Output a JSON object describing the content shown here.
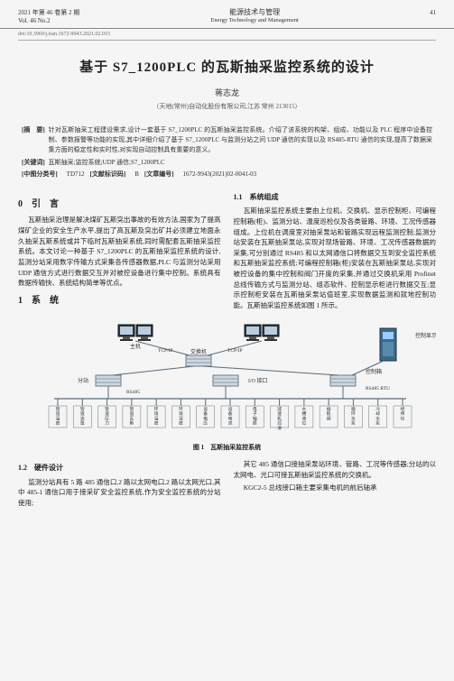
{
  "header": {
    "year_vol": "2021 年第 46 卷第 2 期",
    "vol_en": "Vol. 46 No.2",
    "journal_cn": "能源技术与管理",
    "journal_en": "Energy Technology and Management",
    "page_no": "41"
  },
  "doi": "doi:10.3969/j.issn.1672-9943.2021.02.015",
  "title": "基于 S7_1200PLC 的瓦斯抽采监控系统的设计",
  "author": "蒋志龙",
  "affiliation": "（天地(常州)自动化股份有限公司,江苏 常州 213015）",
  "abstract_label": "[摘　要]",
  "abstract": "针对瓦斯抽采工程建设需求,设计一套基于 S7_1200PLC 的瓦斯抽采监控系统。介绍了该系统的构架、组成、功能以及 PLC 程序中设备控制、参数报警等功能的实现,其中详细介绍了基于 S7_1200PLC 与监测分站之间 UDP 通信的实现以及 RS485-RTU 通信的实现,提高了数据采集方面的稳定性和实时性,对实现自动控制具有重要的意义。",
  "keywords_label": "[关键词]",
  "keywords": "瓦斯抽采;监控系统;UDP 通信;S7_1200PLC",
  "clc_label": "[中图分类号]",
  "clc": "TD712",
  "doc_code_label": "[文献标识码]",
  "doc_code": "B",
  "article_id_label": "[文章编号]",
  "article_id": "1672-9943(2021)02-0041-03",
  "sec0_h": "0　引　言",
  "sec0_p1": "瓦斯抽采治理是解决煤矿瓦斯突出事故的有效方法,国家为了提高煤矿企业的安全生产水平,提出了高瓦斯及突出矿井必须建立地面永久抽采瓦斯系统或井下临时瓦斯抽采系统,同时需配套瓦斯抽采监控系统。本文讨论一种基于 S7_1200PLC 的瓦斯抽采监控系统的设计,监测分站采用数字传输方式采集各传感器数据,PLC 与监测分站采用 UDP 通信方式进行数据交互并对被控设备进行集中控制。系统具有数据传输快、系统结构简单等优点。",
  "sec1_h": "1　系　统",
  "sec11_h": "1.1　系统组成",
  "sec11_p1": "瓦斯抽采监控系统主要由上位机、交换机、显示控制柜、可编程控制箱(柜)、监测分站、温度巡检仪及各类管路、环境、工况传感器组成。上位机在调度室对抽采泵站和管路实现远程监测控制;监测分站安装在瓦斯抽采泵站,实现对现场管路、环境、工况传感器数据的采集,可分别通过 RS485 和以太网通信口将数据交互到安全监控系统和瓦斯抽采监控系统;可编程控制箱(柜)安装在瓦斯抽采泵站,实现对被控设备的集中控制和阀门开度的采集,并通过交换机采用 Profinet 总线传输方式与监测分站、组态软件、控制显示柜进行数据交互;显示控制柜安装在瓦斯抽采泵站值班室,实现数据监测和就地控制功能。瓦斯抽采监控系统如图 1 所示。",
  "figure": {
    "caption": "图 1　瓦斯抽采监控系统",
    "nodes": {
      "host": "主机",
      "switch1": "交换机",
      "station": "分站",
      "ioif": "I/O 接口",
      "ctrlbox": "控制箱",
      "dispcab": "控制显示柜",
      "proto_tcpip": "TCP/IP",
      "proto_485": "RS485",
      "proto_485rtu": "RS485 RTU",
      "sensors": [
        "管道温度",
        "管道流量",
        "管道压力",
        "管道瓦斯",
        "环境温度",
        "环境湿度",
        "设备电压",
        "设备电流",
        "电子轴振",
        "减速机润滑",
        "水槽液位",
        "插板阀",
        "循环水泵",
        "冷却水泵",
        "经纬仪"
      ]
    },
    "colors": {
      "line": "#5a6a7a",
      "box_fill": "#dfe6ec",
      "box_stroke": "#6a7a8a",
      "text": "#333"
    }
  },
  "sec12_h": "1.2　硬件设计",
  "sec12_p1": "监测分站具有 5 路 485 通信口,2 路以太网电口,2 路以太网光口,其中 485-1 通信口用于接采矿安全监控系统,作为安全监控系统的分站使用;",
  "sec12_p2": "其它 485 通信口接抽采泵站环境、管路、工况等传感器;分站的以太网电、光口可接瓦斯抽采监控系统的交换机。",
  "sec12_p3": "KGC2-5 总线接口箱主要采集电机的前后轴承"
}
